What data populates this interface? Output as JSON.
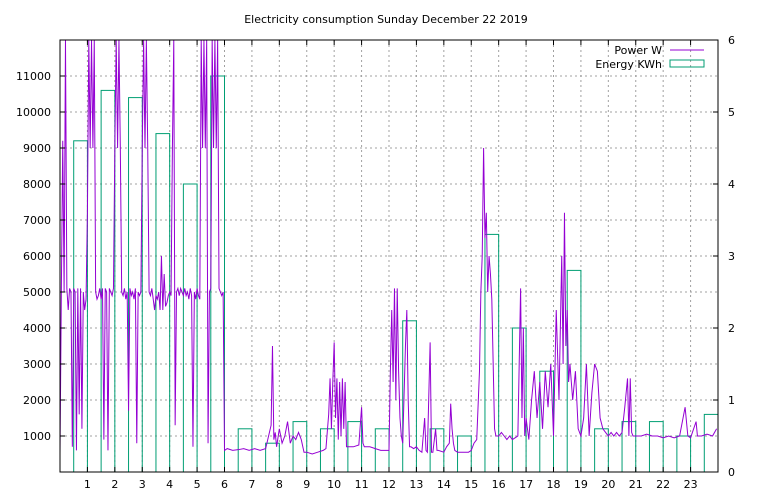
{
  "chart_data": {
    "type": "bar+line",
    "title": "Electricity consumption Sunday December 22 2019",
    "xlabel": "",
    "ylabel": "",
    "y2label": "",
    "xlim": [
      0,
      24
    ],
    "ylim": [
      0,
      12000
    ],
    "y2lim": [
      0,
      6
    ],
    "x_ticks": [
      1,
      2,
      3,
      4,
      5,
      6,
      7,
      8,
      9,
      10,
      11,
      12,
      13,
      14,
      15,
      16,
      17,
      18,
      19,
      20,
      21,
      22,
      23
    ],
    "y_ticks": [
      1000,
      2000,
      3000,
      4000,
      5000,
      6000,
      7000,
      8000,
      9000,
      10000,
      11000
    ],
    "y2_ticks": [
      0,
      1,
      2,
      3,
      4,
      5,
      6
    ],
    "grid": true,
    "legend_position": "top-right",
    "colors": {
      "power": "#9400d3",
      "energy": "#009e73"
    },
    "series": [
      {
        "name": "Power W",
        "style": "line",
        "axis": "y",
        "points": [
          [
            0.0,
            500
          ],
          [
            0.05,
            5100
          ],
          [
            0.1,
            9200
          ],
          [
            0.15,
            5000
          ],
          [
            0.2,
            12000
          ],
          [
            0.25,
            5100
          ],
          [
            0.3,
            4500
          ],
          [
            0.35,
            5100
          ],
          [
            0.4,
            5000
          ],
          [
            0.45,
            700
          ],
          [
            0.5,
            5100
          ],
          [
            0.55,
            5000
          ],
          [
            0.6,
            600
          ],
          [
            0.65,
            5100
          ],
          [
            0.7,
            1600
          ],
          [
            0.75,
            5100
          ],
          [
            0.8,
            1200
          ],
          [
            0.85,
            5000
          ],
          [
            0.9,
            4500
          ],
          [
            0.95,
            4800
          ],
          [
            1.0,
            7200
          ],
          [
            1.05,
            12000
          ],
          [
            1.1,
            9000
          ],
          [
            1.15,
            12000
          ],
          [
            1.2,
            9000
          ],
          [
            1.25,
            12000
          ],
          [
            1.3,
            5000
          ],
          [
            1.35,
            4800
          ],
          [
            1.4,
            4900
          ],
          [
            1.45,
            5100
          ],
          [
            1.5,
            4800
          ],
          [
            1.55,
            5100
          ],
          [
            1.6,
            900
          ],
          [
            1.65,
            5100
          ],
          [
            1.7,
            5000
          ],
          [
            1.75,
            600
          ],
          [
            1.8,
            5100
          ],
          [
            1.85,
            5000
          ],
          [
            1.9,
            4900
          ],
          [
            1.95,
            5100
          ],
          [
            2.0,
            9000
          ],
          [
            2.05,
            12000
          ],
          [
            2.1,
            9000
          ],
          [
            2.15,
            12000
          ],
          [
            2.2,
            9000
          ],
          [
            2.25,
            5000
          ],
          [
            2.3,
            4900
          ],
          [
            2.35,
            5100
          ],
          [
            2.4,
            4800
          ],
          [
            2.45,
            5000
          ],
          [
            2.5,
            1700
          ],
          [
            2.55,
            5100
          ],
          [
            2.6,
            4900
          ],
          [
            2.65,
            5000
          ],
          [
            2.7,
            4800
          ],
          [
            2.75,
            5100
          ],
          [
            2.8,
            800
          ],
          [
            2.85,
            5000
          ],
          [
            2.9,
            4900
          ],
          [
            2.95,
            5000
          ],
          [
            3.0,
            9000
          ],
          [
            3.05,
            12000
          ],
          [
            3.1,
            9000
          ],
          [
            3.15,
            12000
          ],
          [
            3.2,
            9000
          ],
          [
            3.25,
            5000
          ],
          [
            3.3,
            4900
          ],
          [
            3.35,
            5100
          ],
          [
            3.4,
            4800
          ],
          [
            3.45,
            4500
          ],
          [
            3.5,
            4900
          ],
          [
            3.55,
            4800
          ],
          [
            3.6,
            5000
          ],
          [
            3.65,
            4500
          ],
          [
            3.7,
            6000
          ],
          [
            3.75,
            4500
          ],
          [
            3.8,
            5500
          ],
          [
            3.85,
            4600
          ],
          [
            3.9,
            4700
          ],
          [
            3.95,
            4900
          ],
          [
            4.0,
            5000
          ],
          [
            4.05,
            4900
          ],
          [
            4.1,
            9000
          ],
          [
            4.15,
            12000
          ],
          [
            4.2,
            1300
          ],
          [
            4.25,
            5000
          ],
          [
            4.3,
            5100
          ],
          [
            4.35,
            4900
          ],
          [
            4.4,
            5100
          ],
          [
            4.45,
            5000
          ],
          [
            4.5,
            4900
          ],
          [
            4.55,
            5100
          ],
          [
            4.6,
            4900
          ],
          [
            4.65,
            5000
          ],
          [
            4.7,
            4800
          ],
          [
            4.75,
            5100
          ],
          [
            4.8,
            4900
          ],
          [
            4.85,
            700
          ],
          [
            4.9,
            5000
          ],
          [
            4.95,
            4800
          ],
          [
            5.0,
            5100
          ],
          [
            5.05,
            4900
          ],
          [
            5.1,
            4800
          ],
          [
            5.15,
            12000
          ],
          [
            5.2,
            9000
          ],
          [
            5.25,
            12000
          ],
          [
            5.3,
            9000
          ],
          [
            5.35,
            12000
          ],
          [
            5.4,
            800
          ],
          [
            5.45,
            5000
          ],
          [
            5.5,
            5100
          ],
          [
            5.55,
            12000
          ],
          [
            5.6,
            9000
          ],
          [
            5.65,
            12000
          ],
          [
            5.7,
            9000
          ],
          [
            5.75,
            12000
          ],
          [
            5.8,
            5100
          ],
          [
            5.85,
            5000
          ],
          [
            5.9,
            4900
          ],
          [
            5.95,
            5000
          ],
          [
            6.0,
            600
          ],
          [
            6.1,
            650
          ],
          [
            6.3,
            600
          ],
          [
            6.5,
            620
          ],
          [
            6.7,
            650
          ],
          [
            6.9,
            600
          ],
          [
            7.1,
            650
          ],
          [
            7.3,
            600
          ],
          [
            7.5,
            650
          ],
          [
            7.7,
            1300
          ],
          [
            7.75,
            3500
          ],
          [
            7.8,
            900
          ],
          [
            7.85,
            1100
          ],
          [
            7.9,
            700
          ],
          [
            8.0,
            1200
          ],
          [
            8.1,
            800
          ],
          [
            8.2,
            1000
          ],
          [
            8.3,
            1400
          ],
          [
            8.4,
            800
          ],
          [
            8.5,
            1000
          ],
          [
            8.6,
            900
          ],
          [
            8.7,
            1100
          ],
          [
            8.8,
            900
          ],
          [
            8.9,
            550
          ],
          [
            9.0,
            550
          ],
          [
            9.2,
            500
          ],
          [
            9.4,
            550
          ],
          [
            9.6,
            600
          ],
          [
            9.7,
            650
          ],
          [
            9.8,
            1600
          ],
          [
            9.85,
            2600
          ],
          [
            9.9,
            1200
          ],
          [
            9.95,
            2500
          ],
          [
            10.0,
            3600
          ],
          [
            10.05,
            1500
          ],
          [
            10.1,
            2600
          ],
          [
            10.15,
            900
          ],
          [
            10.2,
            2500
          ],
          [
            10.25,
            1000
          ],
          [
            10.3,
            2600
          ],
          [
            10.35,
            1200
          ],
          [
            10.4,
            2500
          ],
          [
            10.45,
            700
          ],
          [
            10.5,
            700
          ],
          [
            10.7,
            700
          ],
          [
            10.9,
            750
          ],
          [
            11.0,
            1800
          ],
          [
            11.05,
            800
          ],
          [
            11.1,
            700
          ],
          [
            11.3,
            700
          ],
          [
            11.5,
            650
          ],
          [
            11.7,
            600
          ],
          [
            11.9,
            600
          ],
          [
            12.0,
            600
          ],
          [
            12.05,
            2800
          ],
          [
            12.1,
            4500
          ],
          [
            12.15,
            2500
          ],
          [
            12.2,
            5100
          ],
          [
            12.25,
            2000
          ],
          [
            12.3,
            5100
          ],
          [
            12.35,
            2800
          ],
          [
            12.4,
            1500
          ],
          [
            12.45,
            1000
          ],
          [
            12.5,
            800
          ],
          [
            12.6,
            3500
          ],
          [
            12.65,
            4500
          ],
          [
            12.7,
            2000
          ],
          [
            12.75,
            700
          ],
          [
            12.8,
            700
          ],
          [
            12.9,
            650
          ],
          [
            13.0,
            700
          ],
          [
            13.1,
            600
          ],
          [
            13.2,
            550
          ],
          [
            13.3,
            1500
          ],
          [
            13.35,
            600
          ],
          [
            13.4,
            550
          ],
          [
            13.5,
            3600
          ],
          [
            13.55,
            550
          ],
          [
            13.6,
            550
          ],
          [
            13.7,
            1200
          ],
          [
            13.75,
            600
          ],
          [
            13.8,
            600
          ],
          [
            14.0,
            550
          ],
          [
            14.1,
            700
          ],
          [
            14.2,
            800
          ],
          [
            14.25,
            1900
          ],
          [
            14.3,
            1200
          ],
          [
            14.35,
            800
          ],
          [
            14.4,
            600
          ],
          [
            14.5,
            550
          ],
          [
            14.7,
            550
          ],
          [
            14.9,
            550
          ],
          [
            15.0,
            600
          ],
          [
            15.1,
            800
          ],
          [
            15.2,
            900
          ],
          [
            15.3,
            2800
          ],
          [
            15.35,
            5000
          ],
          [
            15.4,
            6000
          ],
          [
            15.45,
            9000
          ],
          [
            15.5,
            6500
          ],
          [
            15.55,
            7200
          ],
          [
            15.6,
            5000
          ],
          [
            15.65,
            6000
          ],
          [
            15.7,
            5500
          ],
          [
            15.75,
            4800
          ],
          [
            15.8,
            3000
          ],
          [
            15.85,
            1200
          ],
          [
            15.9,
            1000
          ],
          [
            16.0,
            1000
          ],
          [
            16.1,
            1100
          ],
          [
            16.2,
            1000
          ],
          [
            16.3,
            900
          ],
          [
            16.4,
            1000
          ],
          [
            16.5,
            900
          ],
          [
            16.6,
            950
          ],
          [
            16.7,
            1000
          ],
          [
            16.8,
            5100
          ],
          [
            16.85,
            1500
          ],
          [
            16.9,
            4000
          ],
          [
            16.95,
            1000
          ],
          [
            17.0,
            1500
          ],
          [
            17.1,
            900
          ],
          [
            17.2,
            2000
          ],
          [
            17.3,
            2800
          ],
          [
            17.4,
            1500
          ],
          [
            17.5,
            2500
          ],
          [
            17.6,
            1200
          ],
          [
            17.7,
            2800
          ],
          [
            17.8,
            1800
          ],
          [
            17.9,
            3000
          ],
          [
            18.0,
            1000
          ],
          [
            18.1,
            4500
          ],
          [
            18.2,
            2000
          ],
          [
            18.3,
            6000
          ],
          [
            18.35,
            3000
          ],
          [
            18.4,
            7200
          ],
          [
            18.45,
            3500
          ],
          [
            18.5,
            4500
          ],
          [
            18.55,
            2500
          ],
          [
            18.6,
            3000
          ],
          [
            18.7,
            2000
          ],
          [
            18.8,
            2800
          ],
          [
            18.9,
            1200
          ],
          [
            19.0,
            1000
          ],
          [
            19.1,
            1500
          ],
          [
            19.2,
            3000
          ],
          [
            19.3,
            1000
          ],
          [
            19.4,
            2200
          ],
          [
            19.5,
            3000
          ],
          [
            19.6,
            2800
          ],
          [
            19.7,
            1500
          ],
          [
            19.8,
            1200
          ],
          [
            19.9,
            1100
          ],
          [
            20.0,
            1000
          ],
          [
            20.1,
            1100
          ],
          [
            20.2,
            1000
          ],
          [
            20.3,
            1100
          ],
          [
            20.4,
            1000
          ],
          [
            20.5,
            1100
          ],
          [
            20.6,
            1800
          ],
          [
            20.7,
            2600
          ],
          [
            20.75,
            1000
          ],
          [
            20.8,
            2600
          ],
          [
            20.85,
            1100
          ],
          [
            20.9,
            1000
          ],
          [
            21.0,
            1000
          ],
          [
            21.2,
            1000
          ],
          [
            21.4,
            1050
          ],
          [
            21.6,
            1000
          ],
          [
            21.8,
            1000
          ],
          [
            22.0,
            950
          ],
          [
            22.2,
            1000
          ],
          [
            22.4,
            950
          ],
          [
            22.6,
            1000
          ],
          [
            22.8,
            1800
          ],
          [
            22.9,
            1000
          ],
          [
            23.0,
            950
          ],
          [
            23.2,
            1400
          ],
          [
            23.25,
            1000
          ],
          [
            23.4,
            1000
          ],
          [
            23.6,
            1050
          ],
          [
            23.8,
            1000
          ],
          [
            23.95,
            1200
          ]
        ]
      },
      {
        "name": "Energy KWh",
        "style": "histogram",
        "axis": "y2",
        "x": [
          0,
          1,
          2,
          3,
          4,
          5,
          6,
          7,
          8,
          9,
          10,
          11,
          12,
          13,
          14,
          15,
          16,
          17,
          18,
          19,
          20,
          21,
          22,
          23
        ],
        "values": [
          4.6,
          5.3,
          5.2,
          4.7,
          4.0,
          5.5,
          0.6,
          0.4,
          0.7,
          0.6,
          0.7,
          0.6,
          2.1,
          0.6,
          0.5,
          3.3,
          2.0,
          1.4,
          2.8,
          0.6,
          0.7,
          0.7,
          0.5,
          0.8
        ]
      }
    ]
  }
}
